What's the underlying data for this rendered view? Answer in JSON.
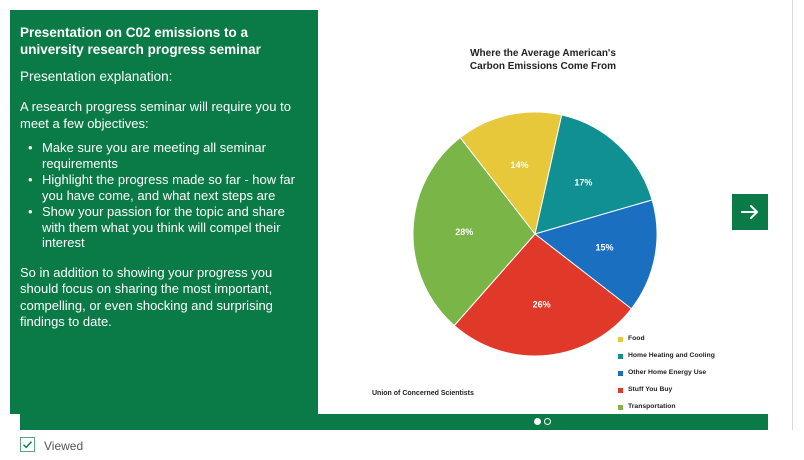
{
  "panel": {
    "title": "Presentation on C02 emissions to a university research progress seminar",
    "subtitle": "Presentation explanation:",
    "intro": "A research progress seminar will require you to meet a few objectives:",
    "bullets": [
      "Make sure you are meeting all seminar requirements",
      "Highlight the progress made so far - how far you have come, and what next steps are",
      "Show your passion for the topic and share with them what you think will compel their interest"
    ],
    "closing": "So in addition to showing your progress you should focus on sharing the most important, compelling, or even shocking and surprising findings to date."
  },
  "chart_data": {
    "type": "pie",
    "title_lines": [
      "Where the Average American's",
      "Carbon Emissions Come From"
    ],
    "categories": [
      "Food",
      "Home Heating and Cooling",
      "Other Home Energy Use",
      "Stuff You Buy",
      "Transportation"
    ],
    "values": [
      14,
      17,
      15,
      26,
      28
    ],
    "labels": [
      "14%",
      "17%",
      "15%",
      "26%",
      "28%"
    ],
    "colors": [
      "#e6c83a",
      "#119094",
      "#1a6fc0",
      "#e0392a",
      "#7ab548"
    ],
    "legend_position": "bottom-right",
    "source": "Union of Concerned Scientists"
  },
  "nav": {
    "next_icon": "arrow-right-icon"
  },
  "pager": {
    "count": 2,
    "active": 0
  },
  "status": {
    "viewed_label": "Viewed",
    "checkbox_icon": "check-icon",
    "accent": "#0a7a47"
  }
}
